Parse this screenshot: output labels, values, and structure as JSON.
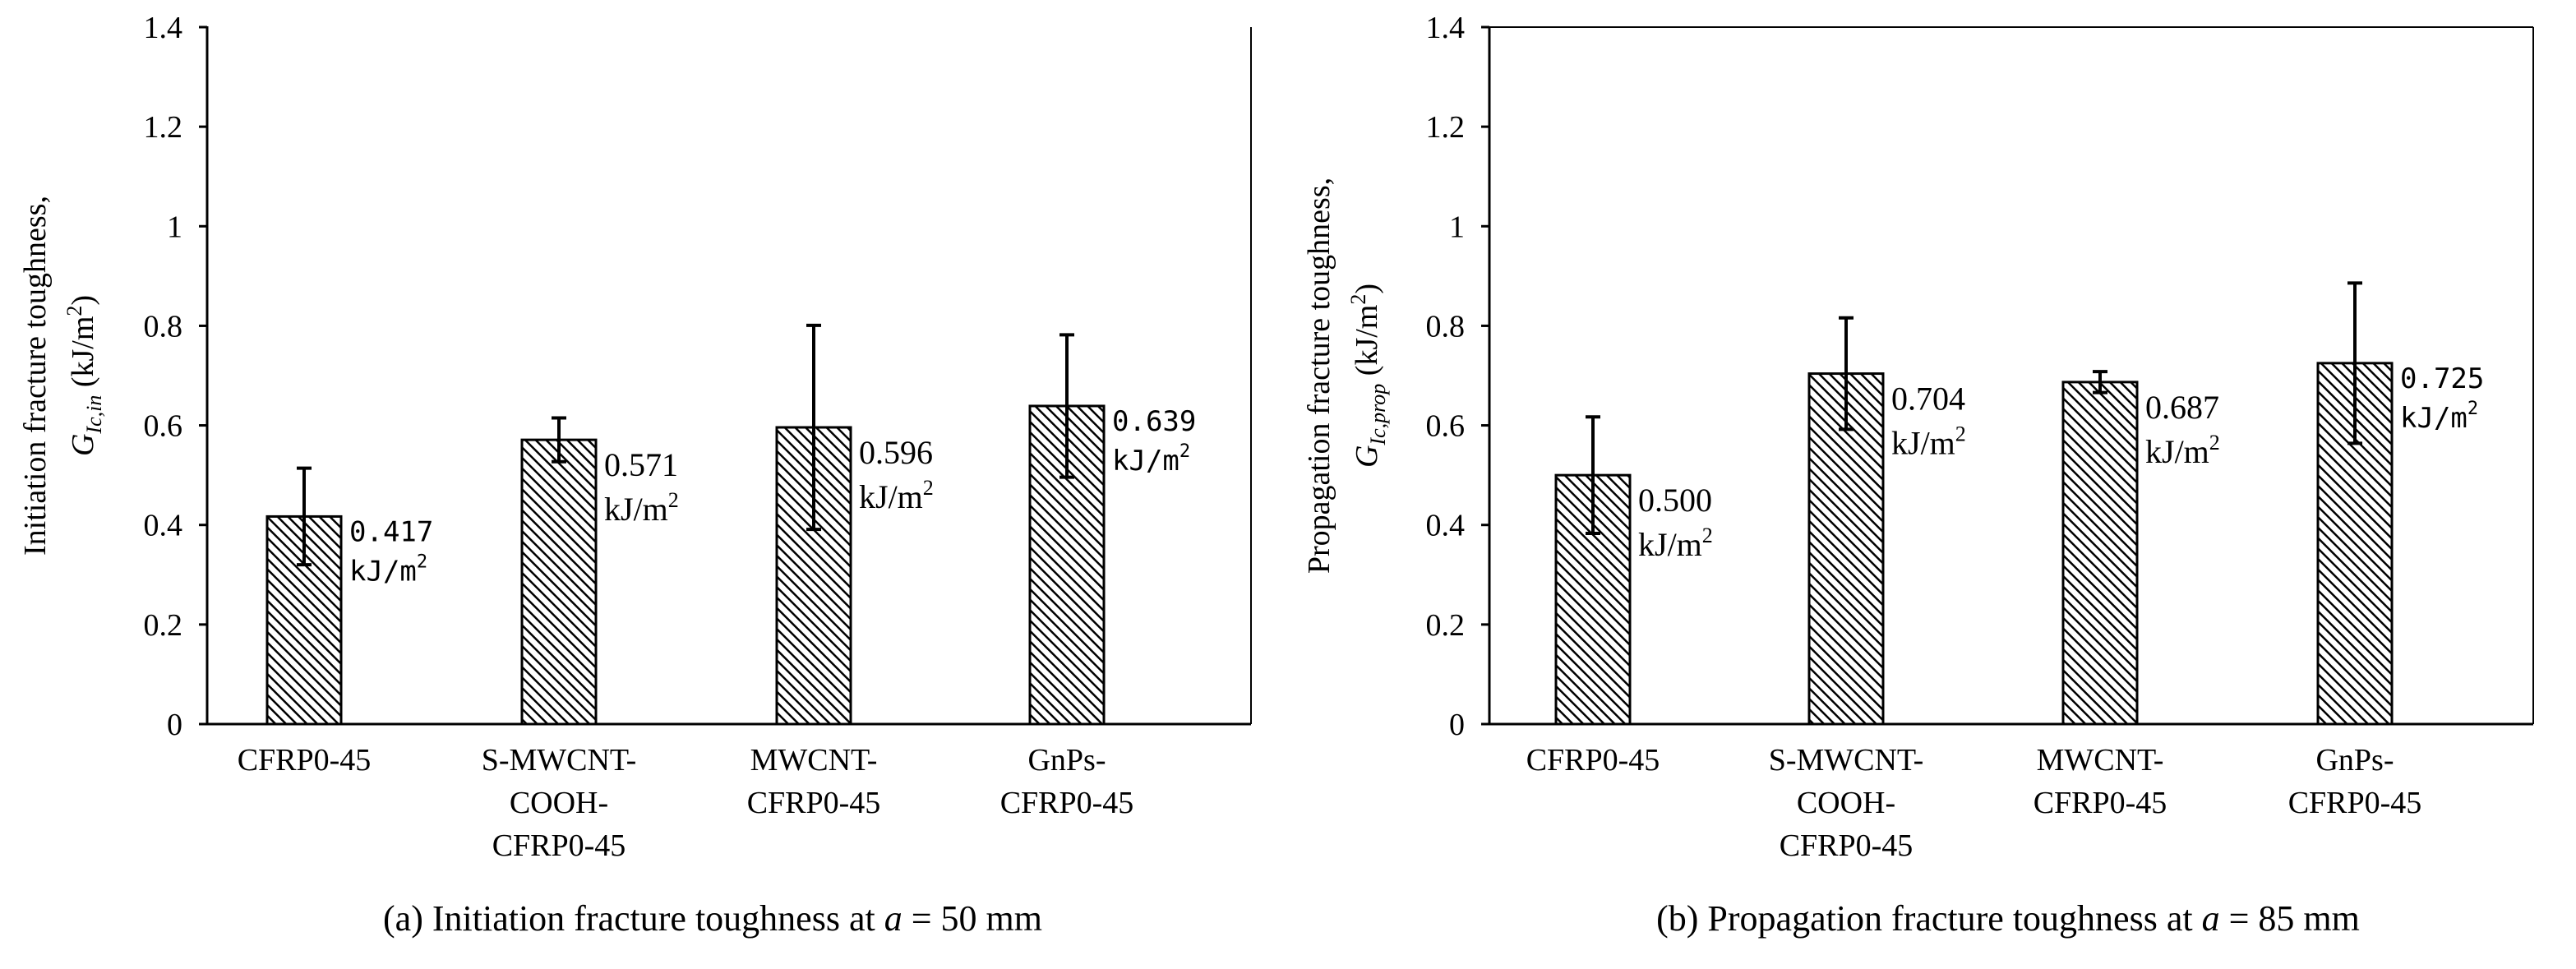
{
  "chart_data": [
    {
      "type": "bar",
      "title": "",
      "ylabel_main": "Initiation fracture toughness,",
      "ylabel_symbol": "G",
      "ylabel_subscript": "Ic,in",
      "ylabel_unit_pre": " (kJ/m",
      "ylabel_unit_sup": "2",
      "ylabel_unit_post": ")",
      "ylim": [
        0,
        1.4
      ],
      "yticks": [
        "0",
        "0.2",
        "0.4",
        "0.6",
        "0.8",
        "1",
        "1.2",
        "1.4"
      ],
      "categories": [
        [
          "CFRP0-45"
        ],
        [
          "S-MWCNT-",
          "COOH-",
          "CFRP0-45"
        ],
        [
          "MWCNT-",
          "CFRP0-45"
        ],
        [
          "GnPs-",
          "CFRP0-45"
        ]
      ],
      "values": [
        0.417,
        0.571,
        0.596,
        0.639
      ],
      "errors": [
        0.097,
        0.044,
        0.205,
        0.143
      ],
      "value_labels": [
        "0.417",
        "0.571",
        "0.596",
        "0.639"
      ],
      "value_label_mono": [
        true,
        false,
        false,
        true
      ],
      "unit_label_base": "kJ/m",
      "unit_label_sup": "2",
      "caption_prefix": "(a) Initiation fracture toughness at ",
      "caption_var": "a",
      "caption_suffix": " = 50 mm"
    },
    {
      "type": "bar",
      "title": "",
      "ylabel_main": "Propagation fracture toughness,",
      "ylabel_symbol": "G",
      "ylabel_subscript": "Ic,prop",
      "ylabel_unit_pre": " (kJ/m",
      "ylabel_unit_sup": "2",
      "ylabel_unit_post": ")",
      "ylim": [
        0,
        1.4
      ],
      "yticks": [
        "0",
        "0.2",
        "0.4",
        "0.6",
        "0.8",
        "1",
        "1.2",
        "1.4"
      ],
      "categories": [
        [
          "CFRP0-45"
        ],
        [
          "S-MWCNT-",
          "COOH-",
          "CFRP0-45"
        ],
        [
          "MWCNT-",
          "CFRP0-45"
        ],
        [
          "GnPs-",
          "CFRP0-45"
        ]
      ],
      "values": [
        0.5,
        0.704,
        0.687,
        0.725
      ],
      "errors": [
        0.117,
        0.112,
        0.021,
        0.161
      ],
      "value_labels": [
        "0.500",
        "0.704",
        "0.687",
        "0.725"
      ],
      "value_label_mono": [
        false,
        false,
        false,
        true
      ],
      "unit_label_base": "kJ/m",
      "unit_label_sup": "2",
      "caption_prefix": "(b) Propagation fracture toughness at ",
      "caption_var": "a",
      "caption_suffix": " = 85 mm"
    }
  ]
}
